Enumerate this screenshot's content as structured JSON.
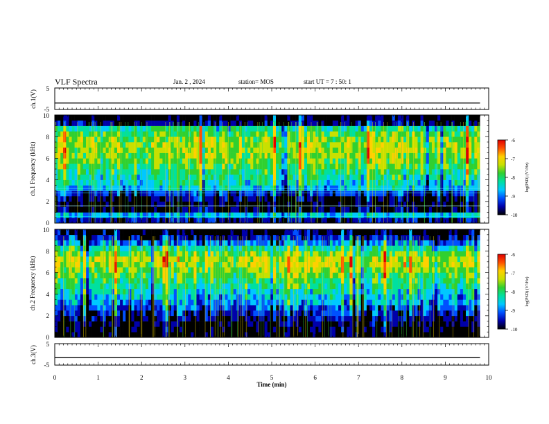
{
  "header": {
    "title": "VLF Spectra",
    "date": "Jan. 2 , 2024",
    "station": "station= MOS",
    "start_ut": "start UT = 7 : 50: 1"
  },
  "panels": {
    "ch1_voltage": {
      "ylabel": "ch.1(V)",
      "ticks": [
        "5",
        "-5"
      ]
    },
    "ch1_spectrogram": {
      "ylabel": "ch.1 Frequency (kHz)",
      "ticks": [
        "10",
        "8",
        "6",
        "4",
        "2",
        "0"
      ]
    },
    "ch2_spectrogram": {
      "ylabel": "ch.2 Frequency (kHz)",
      "ticks": [
        "10",
        "8",
        "6",
        "4",
        "2",
        "0"
      ]
    },
    "ch3_voltage": {
      "ylabel": "ch.3(V)",
      "ticks": [
        "5",
        "-5"
      ]
    }
  },
  "colorbar": {
    "label": "log(PSD) (V²/Hz)",
    "ticks": [
      "-6",
      "-7",
      "-8",
      "-9",
      "-10"
    ],
    "colors": [
      "#000000",
      "#0000aa",
      "#0050ff",
      "#00c8ff",
      "#00e0a0",
      "#30d030",
      "#c8e000",
      "#ffd000",
      "#ff5000",
      "#e00000",
      "#ffffff"
    ]
  },
  "xaxis": {
    "label": "Time (min)",
    "ticks": [
      "0",
      "1",
      "2",
      "3",
      "4",
      "5",
      "6",
      "7",
      "8",
      "9",
      "10"
    ]
  },
  "chart_data": [
    {
      "type": "line",
      "name": "ch1-voltage",
      "x": [
        0,
        9.8
      ],
      "y": [
        -2,
        -2
      ],
      "xlim": [
        0,
        10
      ],
      "ylim": [
        -5,
        5
      ],
      "ylabel": "ch.1(V)"
    },
    {
      "type": "heatmap",
      "name": "ch1-spectrogram",
      "xlim": [
        0,
        10
      ],
      "ylim": [
        0,
        10
      ],
      "data_xmax": 9.8,
      "ylabel": "ch.1 Frequency (kHz)",
      "colorscale_range": [
        -10,
        -6
      ],
      "mean_log_psd_by_frequency": {
        "freq_khz": [
          0.25,
          0.75,
          1.25,
          1.75,
          2.25,
          2.75,
          3.25,
          3.75,
          4.25,
          4.75,
          5.25,
          5.75,
          6.25,
          6.75,
          7.25,
          7.75,
          8.25,
          8.75,
          9.25,
          9.75
        ],
        "log_psd": [
          -9.5,
          -8.6,
          -9.7,
          -9.8,
          -9.7,
          -9.3,
          -8.6,
          -8.4,
          -8.2,
          -8.1,
          -7.9,
          -7.7,
          -7.6,
          -7.5,
          -7.5,
          -7.6,
          -7.8,
          -8.2,
          -9.6,
          -9.9
        ]
      }
    },
    {
      "type": "heatmap",
      "name": "ch2-spectrogram",
      "xlim": [
        0,
        10
      ],
      "ylim": [
        0,
        10
      ],
      "data_xmax": 9.8,
      "ylabel": "ch.2 Frequency (kHz)",
      "colorscale_range": [
        -10,
        -6
      ],
      "mean_log_psd_by_frequency": {
        "freq_khz": [
          0.25,
          0.75,
          1.25,
          1.75,
          2.25,
          2.75,
          3.25,
          3.75,
          4.25,
          4.75,
          5.25,
          5.75,
          6.25,
          6.75,
          7.25,
          7.75,
          8.25,
          8.75,
          9.25,
          9.75
        ],
        "log_psd": [
          -9.9,
          -9.8,
          -9.7,
          -9.5,
          -9.3,
          -9.1,
          -8.8,
          -8.6,
          -8.4,
          -8.2,
          -8.0,
          -7.8,
          -7.6,
          -7.4,
          -7.4,
          -7.7,
          -8.2,
          -8.9,
          -9.4,
          -9.8
        ]
      }
    },
    {
      "type": "line",
      "name": "ch3-voltage",
      "x": [
        0,
        9.8
      ],
      "y": [
        -1.5,
        -1.5
      ],
      "xlim": [
        0,
        10
      ],
      "ylim": [
        -5,
        5
      ],
      "ylabel": "ch.3(V)"
    }
  ]
}
